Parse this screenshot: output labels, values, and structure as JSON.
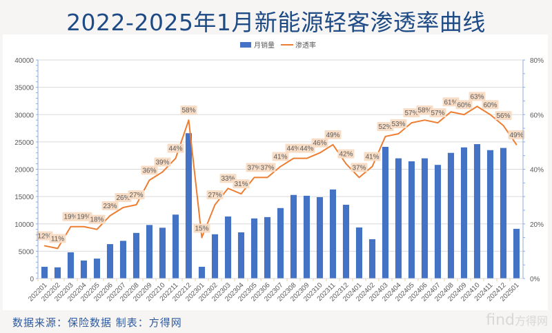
{
  "title": "2022-2025年1月新能源轻客渗透率曲线",
  "source": "数据来源：保险数据 制表：方得网",
  "watermark": {
    "latin": "find",
    "cn": "方得网"
  },
  "colors": {
    "bar": "#4472c4",
    "line": "#ed7d31",
    "label_bg": "#f7dcc6",
    "grid": "#d9d9d9",
    "axis": "#8eaadb",
    "title": "#1e4a86"
  },
  "chart_data": {
    "type": "bar+line",
    "title": "2022-2025年1月新能源轻客渗透率曲线",
    "legend": {
      "position": "top",
      "entries": [
        "月销量",
        "渗透率"
      ]
    },
    "grid": true,
    "categories": [
      "202201",
      "202202",
      "202203",
      "202204",
      "202205",
      "202206",
      "202207",
      "202208",
      "202209",
      "202210",
      "202211",
      "202212",
      "202301",
      "202302",
      "202303",
      "202304",
      "202305",
      "202306",
      "202307",
      "202308",
      "202309",
      "202310",
      "202311",
      "202312",
      "202401",
      "202402",
      "202403",
      "202404",
      "202405",
      "202406",
      "202407",
      "202408",
      "202409",
      "202410",
      "202411",
      "202412",
      "202501"
    ],
    "series": [
      {
        "name": "月销量",
        "type": "bar",
        "axis": "left",
        "values": [
          2150,
          2050,
          4800,
          3300,
          3650,
          6300,
          6900,
          8350,
          9800,
          9300,
          11700,
          26600,
          2150,
          8100,
          11350,
          8450,
          11000,
          11250,
          12900,
          15300,
          15150,
          14900,
          16300,
          13500,
          9350,
          7200,
          24100,
          22000,
          21450,
          22000,
          20800,
          23000,
          24000,
          24600,
          23500,
          23900,
          9100
        ]
      },
      {
        "name": "渗透率",
        "type": "line",
        "axis": "right",
        "unit": "%",
        "values": [
          12,
          11,
          19,
          19,
          18,
          23,
          26,
          27,
          36,
          39,
          44,
          58,
          15,
          27,
          33,
          31,
          37,
          37,
          41,
          44,
          44,
          46,
          49,
          42,
          37,
          41,
          52,
          53,
          57,
          58,
          57,
          61,
          60,
          63,
          60,
          56,
          49
        ],
        "labels": [
          "12%",
          "11%",
          "19%",
          "19%",
          "18%",
          "23%",
          "26%",
          "27%",
          "36%",
          "39%",
          "44%",
          "58%",
          "15%",
          "27%",
          "33%",
          "31%",
          "37%",
          "37%",
          "41%",
          "44%",
          "44%",
          "46%",
          "49%",
          "42%",
          "37%",
          "41%",
          "52%",
          "53%",
          "57%",
          "58%",
          "57%",
          "61%",
          "60%",
          "63%",
          "60%",
          "56%",
          "49%"
        ]
      }
    ],
    "left_axis": {
      "ylim": [
        0,
        40000
      ],
      "ticks": [
        0,
        5000,
        10000,
        15000,
        20000,
        25000,
        30000,
        35000,
        40000
      ],
      "tick_labels": [
        "0",
        "5000",
        "10000",
        "15000",
        "20000",
        "25000",
        "30000",
        "35000",
        "40000"
      ]
    },
    "right_axis": {
      "ylim": [
        0,
        80
      ],
      "ticks": [
        0,
        20,
        40,
        60,
        80
      ],
      "tick_labels": [
        "0%",
        "20%",
        "40%",
        "60%",
        "80%"
      ]
    },
    "xlabel": "",
    "ylabel": ""
  }
}
